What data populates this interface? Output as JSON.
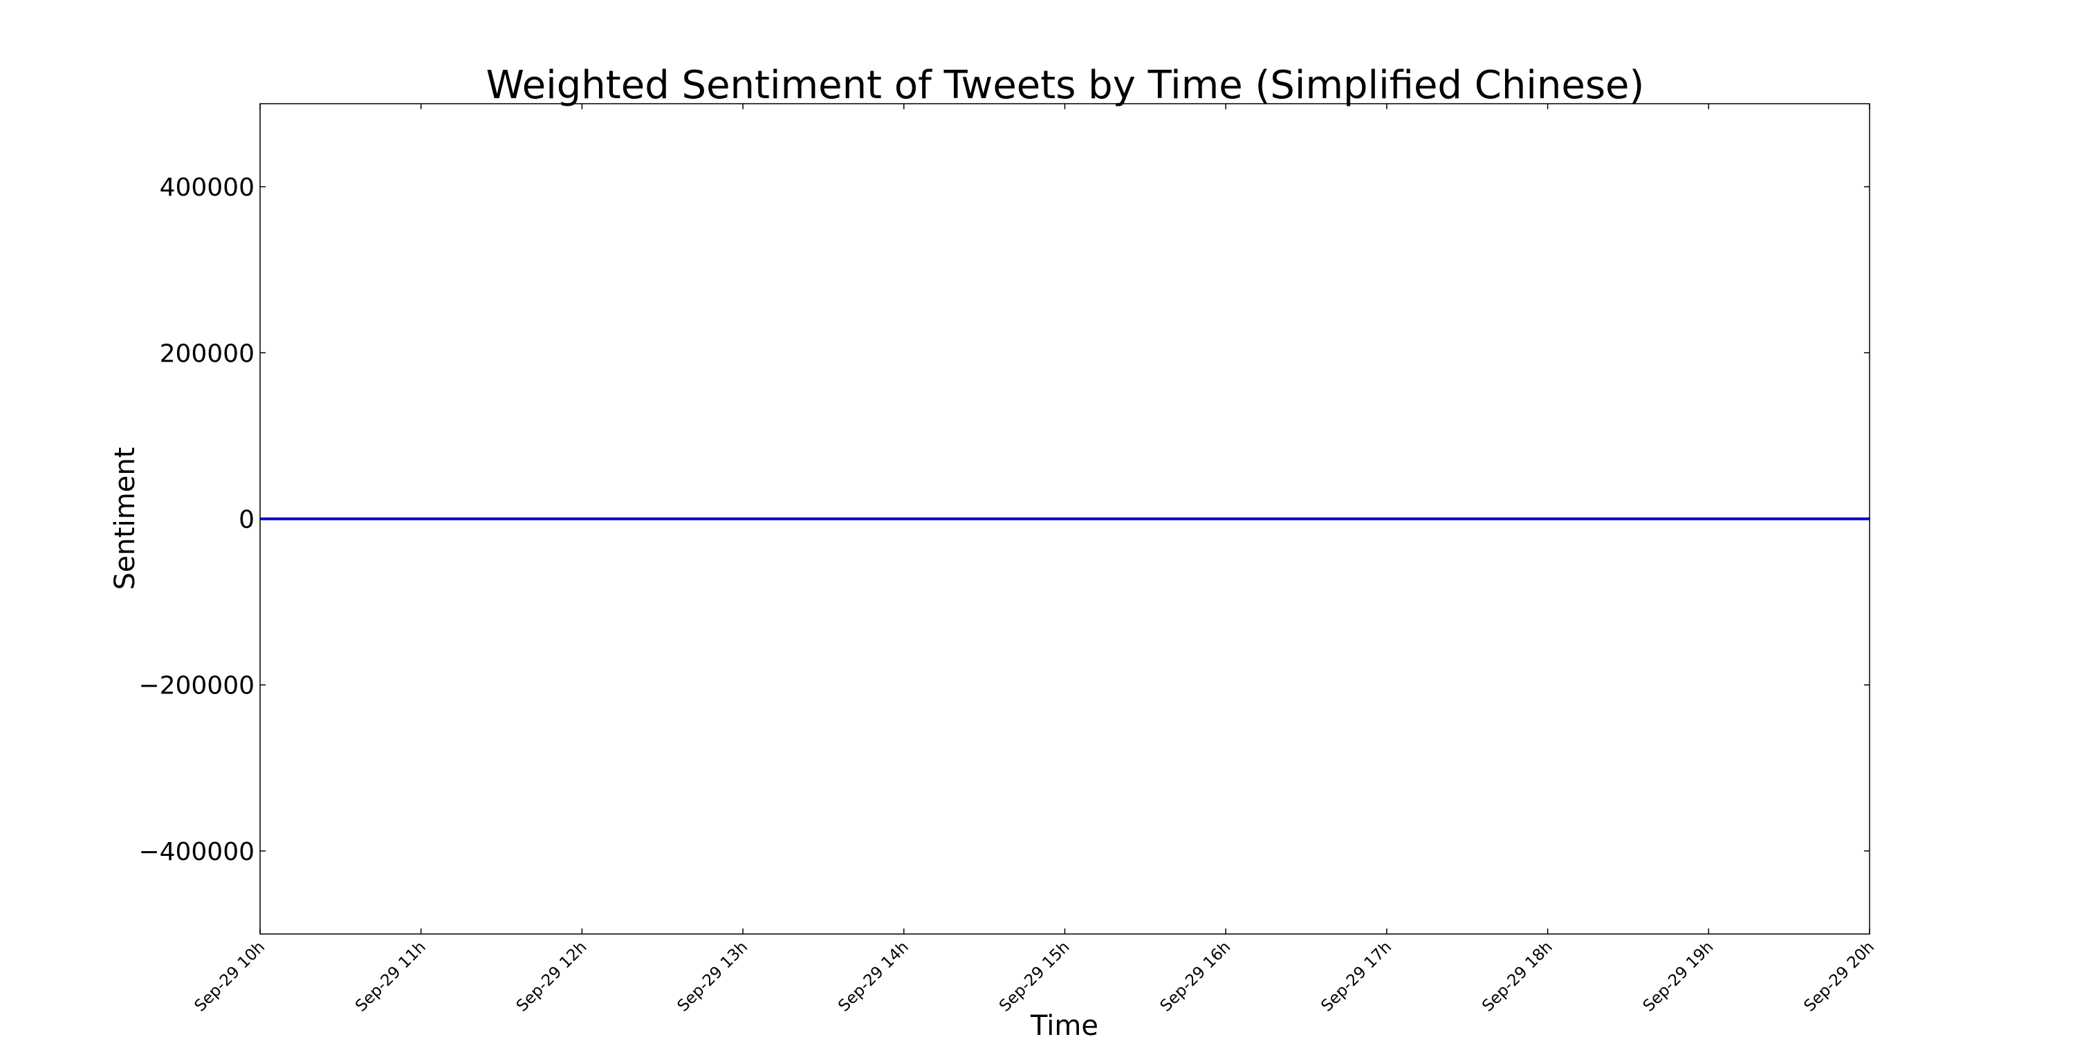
{
  "chart_data": {
    "type": "line",
    "title": "Weighted Sentiment of Tweets by Time (Simplified Chinese)",
    "xlabel": "Time",
    "ylabel": "Sentiment",
    "x_tick_labels": [
      "Sep-29 10h",
      "Sep-29 11h",
      "Sep-29 12h",
      "Sep-29 13h",
      "Sep-29 14h",
      "Sep-29 15h",
      "Sep-29 16h",
      "Sep-29 17h",
      "Sep-29 18h",
      "Sep-29 19h",
      "Sep-29 20h"
    ],
    "y_ticks": [
      -400000,
      -200000,
      0,
      200000,
      400000
    ],
    "y_tick_labels": [
      "−400000",
      "−200000",
      "0",
      "200000",
      "400000"
    ],
    "ylim": [
      -500000,
      500000
    ],
    "xlim": [
      "Sep-29 10h",
      "Sep-29 20h"
    ],
    "grid": false,
    "series": [
      {
        "color": "#0000cc",
        "x": [
          "Sep-29 10h",
          "Sep-29 20h"
        ],
        "y": [
          0,
          0
        ]
      }
    ]
  }
}
